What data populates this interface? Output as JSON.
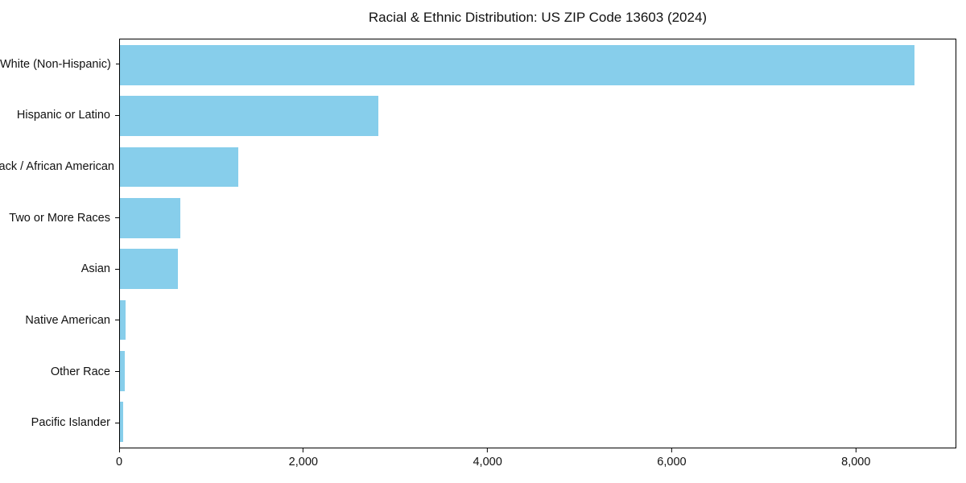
{
  "chart_data": {
    "type": "bar",
    "orientation": "horizontal",
    "title": "Racial & Ethnic Distribution: US ZIP Code 13603 (2024)",
    "categories": [
      "White (Non-Hispanic)",
      "Hispanic or Latino",
      "Black / African American",
      "Two or More Races",
      "Asian",
      "Native American",
      "Other Race",
      "Pacific Islander"
    ],
    "values": [
      8640,
      2810,
      1290,
      655,
      630,
      65,
      50,
      35
    ],
    "xlabel": "",
    "ylabel": "",
    "xlim": [
      0,
      9090
    ],
    "x_ticks": [
      {
        "value": 0,
        "label": "0"
      },
      {
        "value": 2000,
        "label": "2,000"
      },
      {
        "value": 4000,
        "label": "4,000"
      },
      {
        "value": 6000,
        "label": "6,000"
      },
      {
        "value": 8000,
        "label": "8,000"
      }
    ],
    "bar_color": "#87CEEB",
    "grid": false,
    "legend": null
  }
}
